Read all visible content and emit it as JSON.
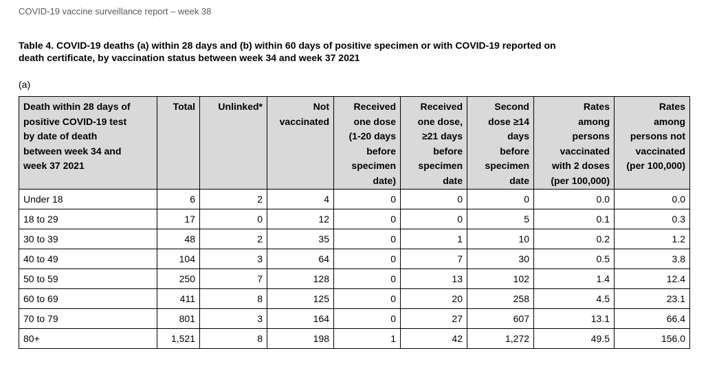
{
  "header": {
    "title": "COVID-19 vaccine surveillance report – week 38"
  },
  "table_title": [
    "Table 4. COVID-19 deaths (a) within 28 days and (b) within 60 days of positive specimen or with COVID-19 reported on",
    "death certificate, by vaccination status between week 34 and week 37 2021"
  ],
  "section_label": "(a)",
  "table": {
    "columns": [
      [
        "Death within 28 days of",
        "positive COVID-19 test",
        "by date of death",
        "between week 34 and",
        "week 37 2021"
      ],
      [
        "Total"
      ],
      [
        "Unlinked*"
      ],
      [
        "Not",
        "vaccinated"
      ],
      [
        "Received",
        "one dose",
        "(1-20 days",
        "before",
        "specimen",
        "date)"
      ],
      [
        "Received",
        "one dose,",
        "≥21 days",
        "before",
        "specimen",
        "date"
      ],
      [
        "Second",
        "dose ≥14",
        "days",
        "before",
        "specimen",
        "date"
      ],
      [
        "Rates",
        "among",
        "persons",
        "vaccinated",
        "with 2 doses",
        "(per 100,000)"
      ],
      [
        "Rates",
        "among",
        "persons not",
        "vaccinated",
        "(per 100,000)"
      ]
    ],
    "rows": [
      [
        "Under 18",
        "6",
        "2",
        "4",
        "0",
        "0",
        "0",
        "0.0",
        "0.0"
      ],
      [
        "18 to 29",
        "17",
        "0",
        "12",
        "0",
        "0",
        "5",
        "0.1",
        "0.3"
      ],
      [
        "30 to 39",
        "48",
        "2",
        "35",
        "0",
        "1",
        "10",
        "0.2",
        "1.2"
      ],
      [
        "40 to 49",
        "104",
        "3",
        "64",
        "0",
        "7",
        "30",
        "0.5",
        "3.8"
      ],
      [
        "50 to 59",
        "250",
        "7",
        "128",
        "0",
        "13",
        "102",
        "1.4",
        "12.4"
      ],
      [
        "60 to 69",
        "411",
        "8",
        "125",
        "0",
        "20",
        "258",
        "4.5",
        "23.1"
      ],
      [
        "70 to 79",
        "801",
        "3",
        "164",
        "0",
        "27",
        "607",
        "13.1",
        "66.4"
      ],
      [
        "80+",
        "1,521",
        "8",
        "198",
        "1",
        "42",
        "1,272",
        "49.5",
        "156.0"
      ]
    ]
  }
}
